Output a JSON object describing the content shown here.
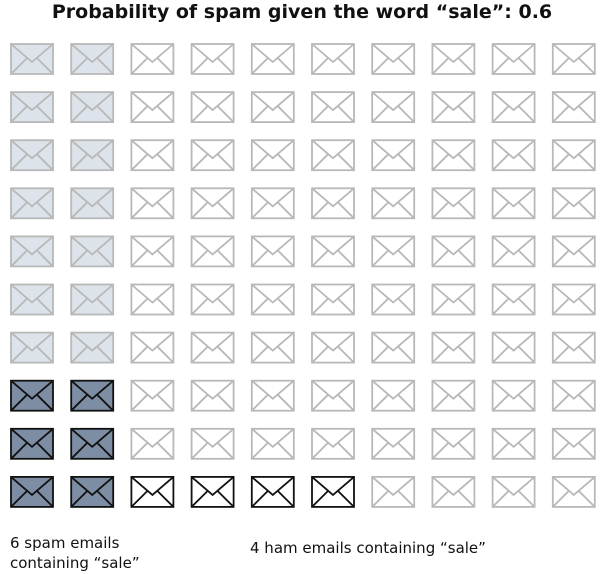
{
  "title": "Probability of spam given the word “sale”: 0.6",
  "grid": {
    "rows": 10,
    "cols": 10,
    "cells_by_row_top_to_bottom": [
      [
        "spam",
        "spam",
        "ham",
        "ham",
        "ham",
        "ham",
        "ham",
        "ham",
        "ham",
        "ham"
      ],
      [
        "spam",
        "spam",
        "ham",
        "ham",
        "ham",
        "ham",
        "ham",
        "ham",
        "ham",
        "ham"
      ],
      [
        "spam",
        "spam",
        "ham",
        "ham",
        "ham",
        "ham",
        "ham",
        "ham",
        "ham",
        "ham"
      ],
      [
        "spam",
        "spam",
        "ham",
        "ham",
        "ham",
        "ham",
        "ham",
        "ham",
        "ham",
        "ham"
      ],
      [
        "spam",
        "spam",
        "ham",
        "ham",
        "ham",
        "ham",
        "ham",
        "ham",
        "ham",
        "ham"
      ],
      [
        "spam",
        "spam",
        "ham",
        "ham",
        "ham",
        "ham",
        "ham",
        "ham",
        "ham",
        "ham"
      ],
      [
        "spam",
        "spam",
        "ham",
        "ham",
        "ham",
        "ham",
        "ham",
        "ham",
        "ham",
        "ham"
      ],
      [
        "spam-sale",
        "spam-sale",
        "ham",
        "ham",
        "ham",
        "ham",
        "ham",
        "ham",
        "ham",
        "ham"
      ],
      [
        "spam-sale",
        "spam-sale",
        "ham",
        "ham",
        "ham",
        "ham",
        "ham",
        "ham",
        "ham",
        "ham"
      ],
      [
        "spam-sale",
        "spam-sale",
        "ham-sale",
        "ham-sale",
        "ham-sale",
        "ham-sale",
        "ham",
        "ham",
        "ham",
        "ham"
      ]
    ]
  },
  "styles": {
    "spam": {
      "fill": "#dde3ea",
      "stroke": "#b8b8b8"
    },
    "spam-sale": {
      "fill": "#7d8da3",
      "stroke": "#111111"
    },
    "ham": {
      "fill": "#ffffff",
      "stroke": "#b8b8b8"
    },
    "ham-sale": {
      "fill": "#ffffff",
      "stroke": "#111111"
    }
  },
  "captions": {
    "spam": "6 spam emails containing “sale”",
    "ham": "4 ham emails containing “sale”"
  }
}
